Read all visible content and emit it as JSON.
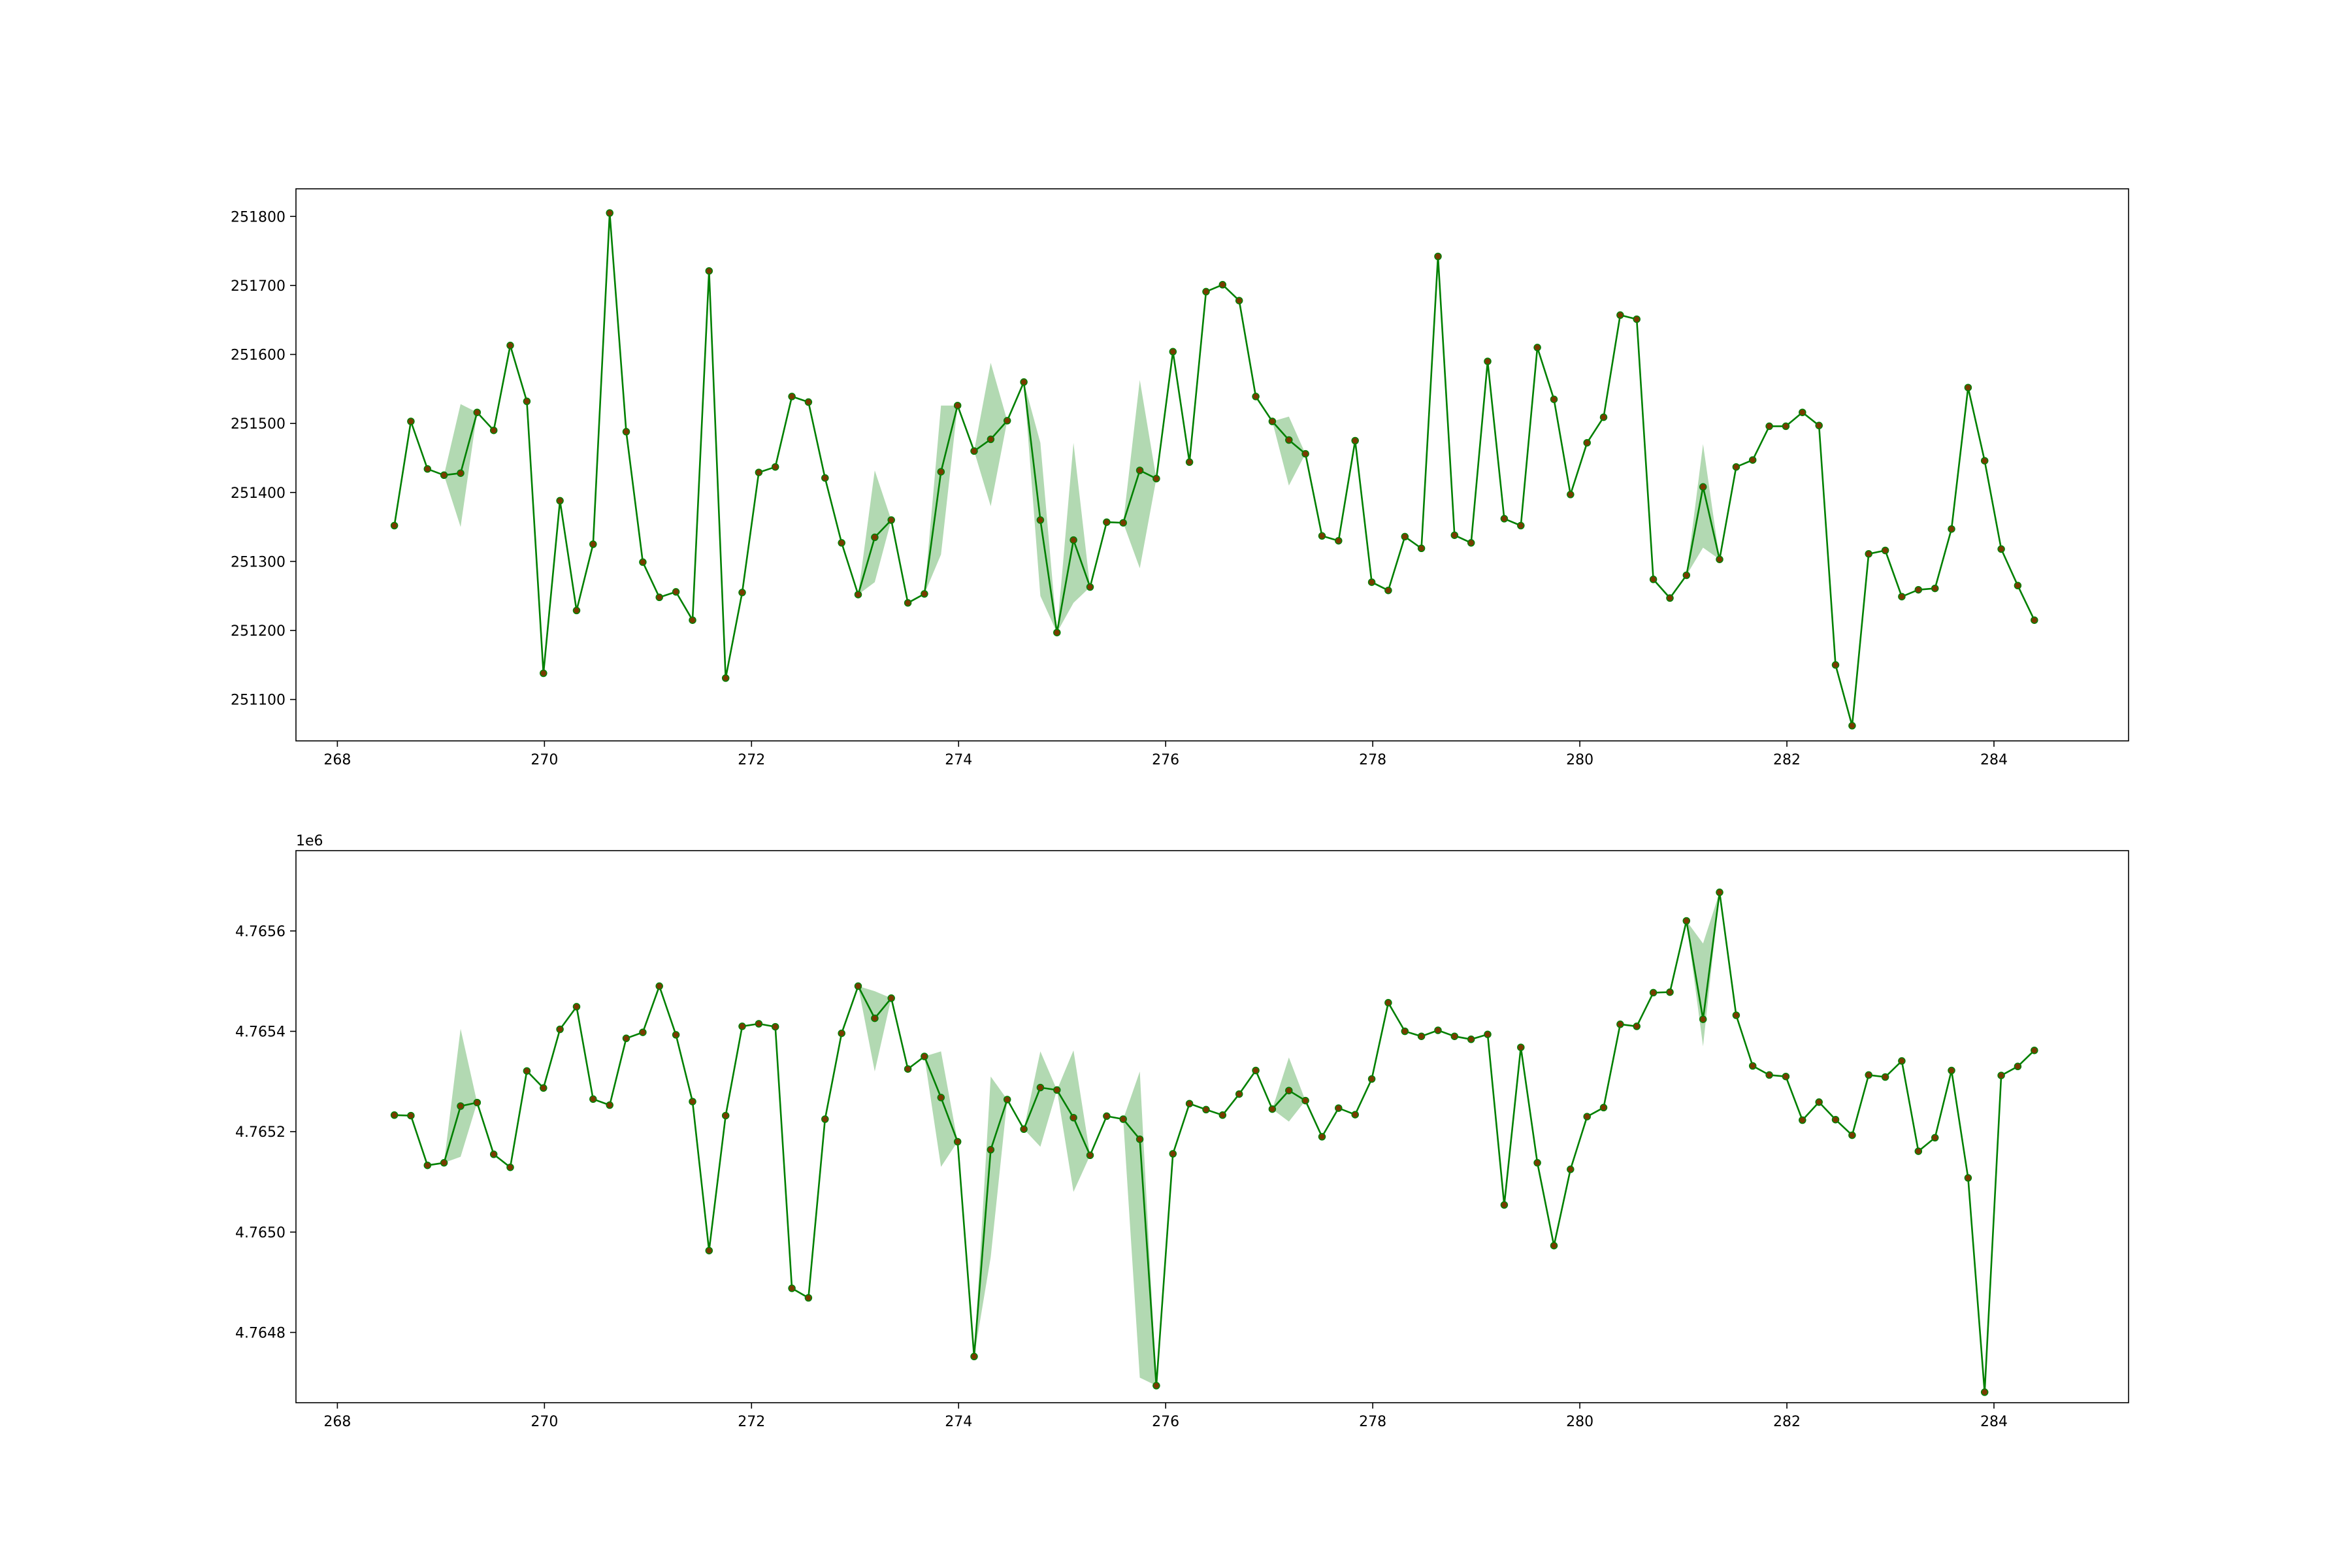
{
  "chart_data": [
    {
      "type": "line",
      "title": "",
      "xlabel": "",
      "ylabel": "",
      "xlim": [
        267.6,
        285.3
      ],
      "ylim": [
        251040,
        251840
      ],
      "grid": false,
      "x_ticks": [
        268,
        270,
        272,
        274,
        276,
        278,
        280,
        282,
        284
      ],
      "x_tick_labels": [
        "268",
        "270",
        "272",
        "274",
        "276",
        "278",
        "280",
        "282",
        "284"
      ],
      "y_ticks": [
        251100,
        251200,
        251300,
        251400,
        251500,
        251600,
        251700,
        251800
      ],
      "y_tick_labels": [
        "251100",
        "251200",
        "251300",
        "251400",
        "251500",
        "251600",
        "251700",
        "251800"
      ],
      "offset_label": "",
      "series_color": "#008000",
      "marker_color": "#7a3b00",
      "band_color": "#008000",
      "x": [
        268.55,
        268.71,
        268.87,
        269.03,
        269.19,
        269.35,
        269.51,
        269.67,
        269.83,
        269.99,
        270.15,
        270.31,
        270.47,
        270.63,
        270.79,
        270.95,
        271.11,
        271.27,
        271.43,
        271.59,
        271.75,
        271.91,
        272.07,
        272.23,
        272.39,
        272.55,
        272.71,
        272.87,
        273.03,
        273.19,
        273.35,
        273.51,
        273.67,
        273.83,
        273.99,
        274.15,
        274.31,
        274.47,
        274.63,
        274.79,
        274.95,
        275.11,
        275.27,
        275.43,
        275.59,
        275.75,
        275.91,
        276.07,
        276.23,
        276.39,
        276.55,
        276.71,
        276.87,
        277.03,
        277.19,
        277.35,
        277.51,
        277.67,
        277.83,
        277.99,
        278.15,
        278.31,
        278.47,
        278.63,
        278.79,
        278.95,
        279.11,
        279.27,
        279.43,
        279.59,
        279.75,
        279.91,
        280.07,
        280.23,
        280.39,
        280.55,
        280.71,
        280.87,
        281.03,
        281.19,
        281.35,
        281.51,
        281.67,
        281.83,
        281.99,
        282.15,
        282.31,
        282.47,
        282.63,
        282.79,
        282.95,
        283.11,
        283.27,
        283.43,
        283.59,
        283.75,
        283.91,
        284.07,
        284.23,
        284.39
      ],
      "y": [
        251352,
        251503,
        251434,
        251425,
        251428,
        251516,
        251490,
        251613,
        251532,
        251138,
        251388,
        251229,
        251325,
        251805,
        251488,
        251299,
        251248,
        251256,
        251215,
        251721,
        251131,
        251255,
        251429,
        251437,
        251539,
        251531,
        251421,
        251327,
        251252,
        251335,
        251360,
        251240,
        251253,
        251430,
        251526,
        251460,
        251477,
        251504,
        251560,
        251360,
        251197,
        251331,
        251263,
        251357,
        251356,
        251432,
        251420,
        251604,
        251444,
        251691,
        251701,
        251678,
        251539,
        251503,
        251476,
        251456,
        251337,
        251330,
        251475,
        251270,
        251258,
        251336,
        251319,
        251742,
        251338,
        251327,
        251590,
        251362,
        251352,
        251610,
        251535,
        251397,
        251472,
        251509,
        251657,
        251651,
        251274,
        251247,
        251280,
        251408,
        251303,
        251437,
        251447,
        251496,
        251496,
        251516,
        251497,
        251150,
        251062,
        251311,
        251316,
        251249,
        251259,
        251261,
        251347,
        251552,
        251446,
        251318,
        251265,
        251215
      ],
      "band_lower": [
        251352,
        251503,
        251434,
        251425,
        251350,
        251516,
        251490,
        251613,
        251532,
        251138,
        251388,
        251229,
        251325,
        251805,
        251488,
        251299,
        251248,
        251256,
        251215,
        251721,
        251131,
        251255,
        251429,
        251437,
        251539,
        251531,
        251421,
        251327,
        251252,
        251270,
        251360,
        251240,
        251253,
        251310,
        251526,
        251460,
        251380,
        251504,
        251560,
        251250,
        251197,
        251240,
        251263,
        251357,
        251356,
        251290,
        251420,
        251604,
        251444,
        251691,
        251701,
        251678,
        251539,
        251503,
        251410,
        251456,
        251337,
        251330,
        251475,
        251270,
        251258,
        251336,
        251319,
        251742,
        251338,
        251327,
        251590,
        251362,
        251352,
        251610,
        251535,
        251397,
        251472,
        251509,
        251657,
        251651,
        251274,
        251247,
        251280,
        251320,
        251303,
        251437,
        251447,
        251496,
        251496,
        251516,
        251497,
        251150,
        251062,
        251311,
        251316,
        251249,
        251259,
        251261,
        251347,
        251552,
        251446,
        251318,
        251265,
        251215
      ],
      "band_upper": [
        251352,
        251503,
        251434,
        251425,
        251528,
        251516,
        251490,
        251613,
        251532,
        251138,
        251388,
        251229,
        251325,
        251805,
        251488,
        251299,
        251248,
        251256,
        251215,
        251721,
        251131,
        251255,
        251429,
        251437,
        251539,
        251531,
        251421,
        251327,
        251252,
        251432,
        251360,
        251240,
        251253,
        251526,
        251526,
        251460,
        251588,
        251504,
        251560,
        251472,
        251197,
        251472,
        251263,
        251357,
        251356,
        251563,
        251420,
        251604,
        251444,
        251691,
        251701,
        251678,
        251539,
        251503,
        251510,
        251456,
        251337,
        251330,
        251475,
        251270,
        251258,
        251336,
        251319,
        251742,
        251338,
        251327,
        251590,
        251362,
        251352,
        251610,
        251535,
        251397,
        251472,
        251509,
        251657,
        251651,
        251274,
        251247,
        251280,
        251470,
        251303,
        251437,
        251447,
        251496,
        251496,
        251516,
        251497,
        251150,
        251062,
        251311,
        251316,
        251249,
        251259,
        251261,
        251347,
        251552,
        251446,
        251318,
        251265,
        251215
      ]
    },
    {
      "type": "line",
      "title": "",
      "xlabel": "",
      "ylabel": "",
      "xlim": [
        267.6,
        285.3
      ],
      "ylim": [
        4764660,
        4765760
      ],
      "grid": false,
      "x_ticks": [
        268,
        270,
        272,
        274,
        276,
        278,
        280,
        282,
        284
      ],
      "x_tick_labels": [
        "268",
        "270",
        "272",
        "274",
        "276",
        "278",
        "280",
        "282",
        "284"
      ],
      "y_ticks": [
        4764800,
        4765000,
        4765200,
        4765400,
        4765600
      ],
      "y_tick_labels": [
        "4.7648",
        "4.7650",
        "4.7652",
        "4.7654",
        "4.7656"
      ],
      "offset_label": "1e6",
      "series_color": "#008000",
      "marker_color": "#7a3b00",
      "band_color": "#008000",
      "x": [
        268.55,
        268.71,
        268.87,
        269.03,
        269.19,
        269.35,
        269.51,
        269.67,
        269.83,
        269.99,
        270.15,
        270.31,
        270.47,
        270.63,
        270.79,
        270.95,
        271.11,
        271.27,
        271.43,
        271.59,
        271.75,
        271.91,
        272.07,
        272.23,
        272.39,
        272.55,
        272.71,
        272.87,
        273.03,
        273.19,
        273.35,
        273.51,
        273.67,
        273.83,
        273.99,
        274.15,
        274.31,
        274.47,
        274.63,
        274.79,
        274.95,
        275.11,
        275.27,
        275.43,
        275.59,
        275.75,
        275.91,
        276.07,
        276.23,
        276.39,
        276.55,
        276.71,
        276.87,
        277.03,
        277.19,
        277.35,
        277.51,
        277.67,
        277.83,
        277.99,
        278.15,
        278.31,
        278.47,
        278.63,
        278.79,
        278.95,
        279.11,
        279.27,
        279.43,
        279.59,
        279.75,
        279.91,
        280.07,
        280.23,
        280.39,
        280.55,
        280.71,
        280.87,
        281.03,
        281.19,
        281.35,
        281.51,
        281.67,
        281.83,
        281.99,
        282.15,
        282.31,
        282.47,
        282.63,
        282.79,
        282.95,
        283.11,
        283.27,
        283.43,
        283.59,
        283.75,
        283.91,
        284.07,
        284.23,
        284.39
      ],
      "y": [
        4765233,
        4765232,
        4765133,
        4765138,
        4765251,
        4765258,
        4765155,
        4765129,
        4765321,
        4765287,
        4765404,
        4765449,
        4765265,
        4765253,
        4765386,
        4765398,
        4765490,
        4765393,
        4765260,
        4764963,
        4765232,
        4765410,
        4765415,
        4765409,
        4764888,
        4764869,
        4765225,
        4765396,
        4765490,
        4765426,
        4765466,
        4765325,
        4765350,
        4765268,
        4765180,
        4764752,
        4765164,
        4765264,
        4765205,
        4765288,
        4765283,
        4765228,
        4765153,
        4765231,
        4765225,
        4765185,
        4764694,
        4765156,
        4765256,
        4765244,
        4765233,
        4765275,
        4765322,
        4765245,
        4765282,
        4765262,
        4765190,
        4765247,
        4765234,
        4765305,
        4765457,
        4765400,
        4765390,
        4765402,
        4765390,
        4765384,
        4765394,
        4765054,
        4765368,
        4765138,
        4764973,
        4765125,
        4765230,
        4765248,
        4765414,
        4765410,
        4765477,
        4765478,
        4765620,
        4765424,
        4765677,
        4765432,
        4765331,
        4765313,
        4765310,
        4765223,
        4765259,
        4765224,
        4765193,
        4765313,
        4765309,
        4765341,
        4765161,
        4765188,
        4765322,
        4765108,
        4764681,
        4765312,
        4765330,
        4765362
      ],
      "band_lower": [
        4765233,
        4765232,
        4765133,
        4765138,
        4765150,
        4765258,
        4765155,
        4765129,
        4765321,
        4765287,
        4765404,
        4765449,
        4765265,
        4765253,
        4765386,
        4765398,
        4765490,
        4765393,
        4765260,
        4764963,
        4765232,
        4765410,
        4765415,
        4765409,
        4764888,
        4764869,
        4765225,
        4765396,
        4765490,
        4765320,
        4765466,
        4765325,
        4765350,
        4765130,
        4765180,
        4764752,
        4764950,
        4765264,
        4765205,
        4765170,
        4765283,
        4765080,
        4765153,
        4765231,
        4765225,
        4764710,
        4764694,
        4765156,
        4765256,
        4765244,
        4765233,
        4765275,
        4765322,
        4765245,
        4765220,
        4765262,
        4765190,
        4765247,
        4765234,
        4765305,
        4765457,
        4765400,
        4765390,
        4765402,
        4765390,
        4765384,
        4765394,
        4765054,
        4765368,
        4765138,
        4764973,
        4765125,
        4765230,
        4765248,
        4765414,
        4765410,
        4765477,
        4765478,
        4765620,
        4765370,
        4765677,
        4765432,
        4765331,
        4765313,
        4765310,
        4765223,
        4765259,
        4765224,
        4765193,
        4765313,
        4765309,
        4765341,
        4765161,
        4765188,
        4765322,
        4765108,
        4764681,
        4765312,
        4765330,
        4765362
      ],
      "band_upper": [
        4765233,
        4765232,
        4765133,
        4765138,
        4765405,
        4765258,
        4765155,
        4765129,
        4765321,
        4765287,
        4765404,
        4765449,
        4765265,
        4765253,
        4765386,
        4765398,
        4765490,
        4765393,
        4765260,
        4764963,
        4765232,
        4765410,
        4765415,
        4765409,
        4764888,
        4764869,
        4765225,
        4765396,
        4765490,
        4765480,
        4765466,
        4765325,
        4765350,
        4765360,
        4765180,
        4764752,
        4765310,
        4765264,
        4765205,
        4765360,
        4765283,
        4765362,
        4765153,
        4765231,
        4765225,
        4765320,
        4764694,
        4765156,
        4765256,
        4765244,
        4765233,
        4765275,
        4765322,
        4765245,
        4765348,
        4765262,
        4765190,
        4765247,
        4765234,
        4765305,
        4765457,
        4765400,
        4765390,
        4765402,
        4765390,
        4765384,
        4765394,
        4765054,
        4765368,
        4765138,
        4764973,
        4765125,
        4765230,
        4765248,
        4765414,
        4765410,
        4765477,
        4765478,
        4765620,
        4765575,
        4765677,
        4765432,
        4765331,
        4765313,
        4765310,
        4765223,
        4765259,
        4765224,
        4765193,
        4765313,
        4765309,
        4765341,
        4765161,
        4765188,
        4765322,
        4765108,
        4764681,
        4765312,
        4765330,
        4765362
      ]
    }
  ]
}
